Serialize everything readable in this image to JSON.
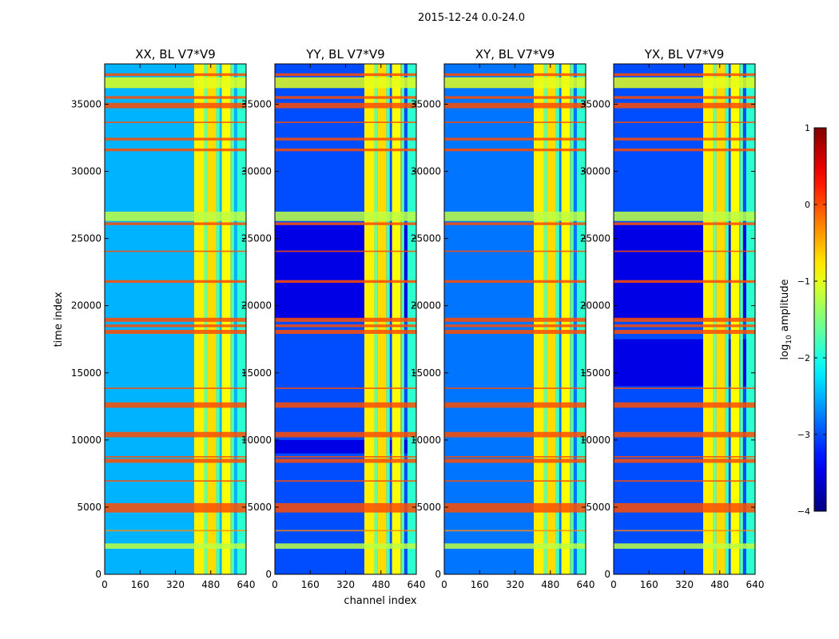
{
  "figure": {
    "suptitle": "2015-12-24 0.0-24.0",
    "xlabel": "channel index",
    "ylabel": "time index"
  },
  "colorbar": {
    "label_prefix": "log",
    "label_sub": "10",
    "label_suffix": " amplitude",
    "range": [
      -4,
      1
    ],
    "ticks": [
      1,
      0,
      -1,
      -2,
      -3,
      -4
    ],
    "tick_labels": [
      "1",
      "0",
      "−1",
      "−2",
      "−3",
      "−4"
    ],
    "colormap": "jet"
  },
  "chart_data": {
    "type": "heatmap",
    "xlim": [
      0,
      640
    ],
    "ylim": [
      0,
      38000
    ],
    "xticks": [
      0,
      160,
      320,
      480,
      640
    ],
    "yticks": [
      0,
      5000,
      10000,
      15000,
      20000,
      25000,
      30000,
      35000
    ],
    "ytick_labels": [
      "0",
      "5000",
      "10000",
      "15000",
      "20000",
      "25000",
      "30000",
      "35000"
    ],
    "panels": [
      {
        "title": "XX, BL V7*V9",
        "background_level": -2.5,
        "dark_rows": []
      },
      {
        "title": "YY, BL V7*V9",
        "background_level": -3.0,
        "dark_rows": [
          [
            9000,
            10000
          ],
          [
            19000,
            26000
          ]
        ]
      },
      {
        "title": "XY, BL V7*V9",
        "background_level": -2.8,
        "dark_rows": []
      },
      {
        "title": "YX, BL V7*V9",
        "background_level": -3.0,
        "dark_rows": [
          [
            14000,
            17500
          ],
          [
            19000,
            26000
          ]
        ]
      }
    ],
    "bright_channel_bands": [
      {
        "range": [
          405,
          450
        ],
        "level": -0.8
      },
      {
        "range": [
          450,
          465
        ],
        "level": -1.6
      },
      {
        "range": [
          465,
          505
        ],
        "level": -0.7
      },
      {
        "range": [
          505,
          520
        ],
        "level": -1.8
      },
      {
        "range": [
          530,
          570
        ],
        "level": -0.9
      },
      {
        "range": [
          572,
          585
        ],
        "level": -1.7
      },
      {
        "range": [
          600,
          640
        ],
        "level": -1.9
      }
    ],
    "rfi_time_rows": [
      [
        4600,
        5300,
        0.0
      ],
      [
        6900,
        7000,
        0.0
      ],
      [
        8300,
        8600,
        0.0
      ],
      [
        8700,
        8800,
        0.0
      ],
      [
        10200,
        10600,
        0.0
      ],
      [
        12400,
        12800,
        0.0
      ],
      [
        13800,
        13900,
        0.0
      ],
      [
        17900,
        18200,
        0.0
      ],
      [
        18400,
        18600,
        0.0
      ],
      [
        18800,
        19100,
        0.0
      ],
      [
        21700,
        21900,
        0.0
      ],
      [
        24000,
        24100,
        0.0
      ],
      [
        26000,
        26200,
        0.0
      ],
      [
        26300,
        27000,
        -1.2
      ],
      [
        31500,
        31700,
        0.0
      ],
      [
        32300,
        32500,
        0.0
      ],
      [
        33600,
        33700,
        0.0
      ],
      [
        34700,
        35100,
        0.0
      ],
      [
        35400,
        35600,
        0.0
      ],
      [
        36200,
        37000,
        -1.0
      ],
      [
        37100,
        37300,
        0.0
      ],
      [
        3200,
        3300,
        -0.3
      ],
      [
        1900,
        2300,
        -1.2
      ]
    ]
  }
}
